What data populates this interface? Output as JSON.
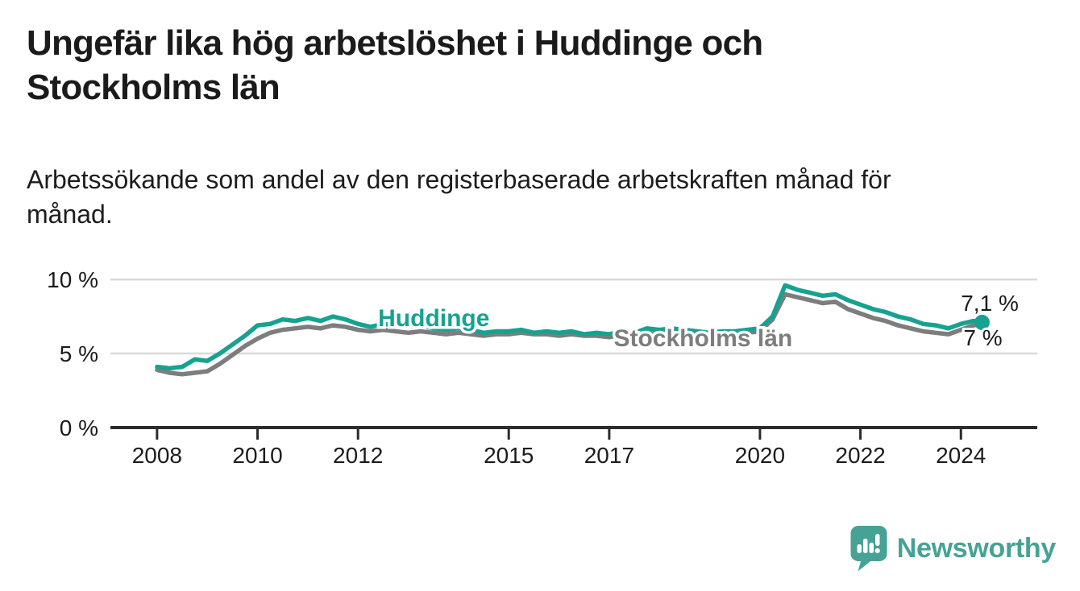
{
  "header": {
    "title_lines": [
      "Ungefär lika hög arbetslöshet i Huddinge och",
      "Stockholms län"
    ],
    "subtitle_lines": [
      "Arbetssökande som andel av den registerbaserade arbetskraften månad för",
      "månad."
    ]
  },
  "footer": {
    "brand": "Newsworthy",
    "brand_color": "#46a295",
    "logo_icon": "speech-bubble-bar-chart-icon"
  },
  "colors": {
    "huddinge_teal": "#16a291",
    "stockholm_gray": "#7d7d7d",
    "text": "#1b1b1b",
    "grid": "#dadada",
    "axis": "#2c2c2c",
    "background": "#ffffff"
  },
  "chart_data": {
    "type": "line",
    "title": "Ungefär lika hög arbetslöshet i Huddinge och Stockholms län",
    "subtitle": "Arbetssökande som andel av den registerbaserade arbetskraften månad för månad.",
    "xlabel": "",
    "ylabel": "",
    "grid": "horizontal",
    "legend_position": "inline-labels",
    "xlim": [
      2007.12,
      2025.52
    ],
    "ylim": [
      0,
      10.82
    ],
    "yticks": [
      {
        "value": 0,
        "label": "0 %"
      },
      {
        "value": 5,
        "label": "5 %"
      },
      {
        "value": 10,
        "label": "10 %"
      }
    ],
    "xticks": [
      {
        "value": 2008,
        "label": "2008"
      },
      {
        "value": 2010,
        "label": "2010"
      },
      {
        "value": 2012,
        "label": "2012"
      },
      {
        "value": 2015,
        "label": "2015"
      },
      {
        "value": 2017,
        "label": "2017"
      },
      {
        "value": 2020,
        "label": "2020"
      },
      {
        "value": 2022,
        "label": "2022"
      },
      {
        "value": 2024,
        "label": "2024"
      }
    ],
    "x": [
      2008.0,
      2008.25,
      2008.5,
      2008.75,
      2009.0,
      2009.25,
      2009.5,
      2009.75,
      2010.0,
      2010.25,
      2010.5,
      2010.75,
      2011.0,
      2011.25,
      2011.5,
      2011.75,
      2012.0,
      2012.25,
      2012.5,
      2012.75,
      2013.0,
      2013.25,
      2013.5,
      2013.75,
      2014.0,
      2014.25,
      2014.5,
      2014.75,
      2015.0,
      2015.25,
      2015.5,
      2015.75,
      2016.0,
      2016.25,
      2016.5,
      2016.75,
      2017.0,
      2017.25,
      2017.5,
      2017.75,
      2018.0,
      2018.25,
      2018.5,
      2018.75,
      2019.0,
      2019.25,
      2019.5,
      2019.75,
      2020.0,
      2020.25,
      2020.5,
      2020.75,
      2021.0,
      2021.25,
      2021.5,
      2021.75,
      2022.0,
      2022.25,
      2022.5,
      2022.75,
      2023.0,
      2023.25,
      2023.5,
      2023.75,
      2024.0,
      2024.25,
      2024.42
    ],
    "series": [
      {
        "name": "Huddinge",
        "color": "#16a291",
        "values": [
          4.1,
          4.0,
          4.1,
          4.6,
          4.5,
          5.0,
          5.6,
          6.2,
          6.9,
          7.0,
          7.3,
          7.2,
          7.4,
          7.2,
          7.5,
          7.3,
          7.0,
          6.8,
          7.0,
          6.9,
          6.8,
          6.9,
          6.7,
          6.6,
          6.7,
          6.6,
          6.4,
          6.5,
          6.5,
          6.6,
          6.4,
          6.5,
          6.4,
          6.5,
          6.3,
          6.4,
          6.3,
          6.5,
          6.4,
          6.7,
          6.6,
          6.7,
          6.6,
          6.5,
          6.4,
          6.5,
          6.5,
          6.6,
          6.7,
          7.5,
          9.6,
          9.3,
          9.1,
          8.9,
          9.0,
          8.6,
          8.3,
          8.0,
          7.8,
          7.5,
          7.3,
          7.0,
          6.9,
          6.7,
          7.0,
          7.2,
          7.1
        ]
      },
      {
        "name": "Stockholms län",
        "color": "#7d7d7d",
        "values": [
          3.9,
          3.7,
          3.6,
          3.7,
          3.8,
          4.3,
          4.9,
          5.5,
          6.0,
          6.4,
          6.6,
          6.7,
          6.8,
          6.7,
          6.9,
          6.8,
          6.6,
          6.5,
          6.6,
          6.5,
          6.4,
          6.5,
          6.4,
          6.3,
          6.4,
          6.3,
          6.2,
          6.3,
          6.3,
          6.4,
          6.3,
          6.3,
          6.2,
          6.3,
          6.2,
          6.2,
          6.1,
          6.3,
          6.2,
          6.4,
          6.3,
          6.4,
          6.3,
          6.2,
          6.2,
          6.3,
          6.3,
          6.4,
          6.5,
          7.3,
          9.0,
          8.8,
          8.6,
          8.4,
          8.5,
          8.0,
          7.7,
          7.4,
          7.2,
          6.9,
          6.7,
          6.5,
          6.4,
          6.3,
          6.6,
          6.9,
          7.0
        ]
      }
    ],
    "series_labels": [
      {
        "text": "Huddinge",
        "x": 2012.4,
        "y": 6.85,
        "color": "#16a291"
      },
      {
        "text": "Stockholms län",
        "x": 2017.09,
        "y": 5.49,
        "color": "#7d7d7d"
      }
    ],
    "end_labels": [
      {
        "text": "7,1 %",
        "x": 2024.0,
        "y": 7.88,
        "series": "Huddinge"
      },
      {
        "text": "7 %",
        "x": 2024.05,
        "y": 5.54,
        "series": "Stockholms län"
      }
    ],
    "end_dot": {
      "series": "Huddinge",
      "x": 2024.42,
      "value": 7.1
    }
  }
}
